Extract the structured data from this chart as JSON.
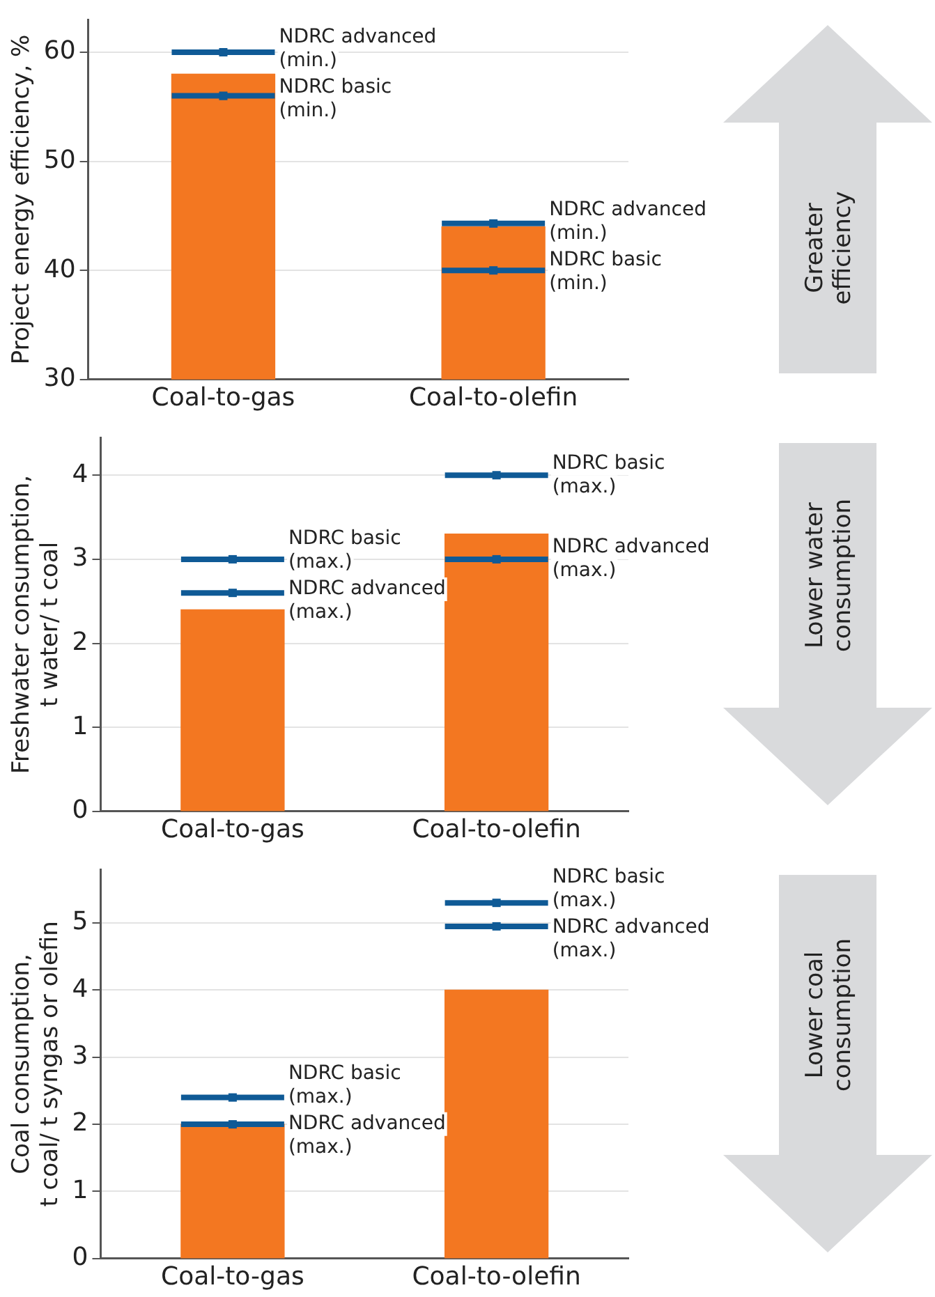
{
  "chart_data": [
    {
      "type": "bar",
      "ylabel": "Project energy efficiency, %",
      "categories": [
        "Coal-to-gas",
        "Coal-to-olefin"
      ],
      "ylim": [
        30,
        63
      ],
      "yticks": [
        30,
        40,
        50,
        60
      ],
      "grid": "y",
      "legend": false,
      "series": [
        {
          "type": "bar",
          "color": "#f37721",
          "values": [
            58,
            44
          ]
        },
        {
          "type": "scatter",
          "color": "#0f5a96",
          "values": [
            60,
            44.3
          ]
        },
        {
          "type": "scatter",
          "color": "#0f5a96",
          "values": [
            56,
            40
          ]
        }
      ],
      "annotations": [
        {
          "text": "NDRC advanced\n(min.)",
          "x": "Coal-to-gas",
          "y": 60
        },
        {
          "text": "NDRC basic\n(min.)",
          "x": "Coal-to-gas",
          "y": 56
        },
        {
          "text": "NDRC advanced\n(min.)",
          "x": "Coal-to-olefin",
          "y": 44.3
        },
        {
          "text": "NDRC basic\n(min.)",
          "x": "Coal-to-olefin",
          "y": 40
        },
        "Greater\nefficiency"
      ]
    },
    {
      "type": "bar",
      "ylabel": "Freshwater consumption,\nt water/ t coal",
      "categories": [
        "Coal-to-gas",
        "Coal-to-olefin"
      ],
      "ylim": [
        0,
        4.45
      ],
      "yticks": [
        0,
        1,
        2,
        3,
        4
      ],
      "grid": "y",
      "legend": false,
      "series": [
        {
          "type": "bar",
          "color": "#f37721",
          "values": [
            2.4,
            3.3
          ]
        },
        {
          "type": "scatter",
          "color": "#0f5a96",
          "values": [
            3.0,
            4.0
          ]
        },
        {
          "type": "scatter",
          "color": "#0f5a96",
          "values": [
            2.6,
            3.0
          ]
        }
      ],
      "annotations": [
        {
          "text": "NDRC basic\n(max.)",
          "x": "Coal-to-gas",
          "y": 3.0
        },
        {
          "text": "NDRC advanced\n(max.)",
          "x": "Coal-to-gas",
          "y": 2.6
        },
        {
          "text": "NDRC basic\n(max.)",
          "x": "Coal-to-olefin",
          "y": 4.0
        },
        {
          "text": "NDRC advanced\n(max.)",
          "x": "Coal-to-olefin",
          "y": 3.0
        },
        "Lower water\nconsumption"
      ]
    },
    {
      "type": "bar",
      "ylabel": "Coal consumption,\nt coal/ t syngas or olefin",
      "categories": [
        "Coal-to-gas",
        "Coal-to-olefin"
      ],
      "ylim": [
        0,
        5.8
      ],
      "yticks": [
        0,
        1,
        2,
        3,
        4,
        5
      ],
      "grid": "y",
      "legend": false,
      "series": [
        {
          "type": "bar",
          "color": "#f37721",
          "values": [
            2.0,
            4.0
          ]
        },
        {
          "type": "scatter",
          "color": "#0f5a96",
          "values": [
            2.4,
            5.3
          ]
        },
        {
          "type": "scatter",
          "color": "#0f5a96",
          "values": [
            2.0,
            4.95
          ]
        }
      ],
      "annotations": [
        {
          "text": "NDRC basic\n(max.)",
          "x": "Coal-to-gas",
          "y": 2.4
        },
        {
          "text": "NDRC advanced\n(max.)",
          "x": "Coal-to-gas",
          "y": 2.0
        },
        {
          "text": "NDRC basic\n(max.)",
          "x": "Coal-to-olefin",
          "y": 5.3
        },
        {
          "text": "NDRC advanced\n(max.)",
          "x": "Coal-to-olefin",
          "y": 4.95
        },
        "Lower coal\nconsumption"
      ]
    }
  ]
}
